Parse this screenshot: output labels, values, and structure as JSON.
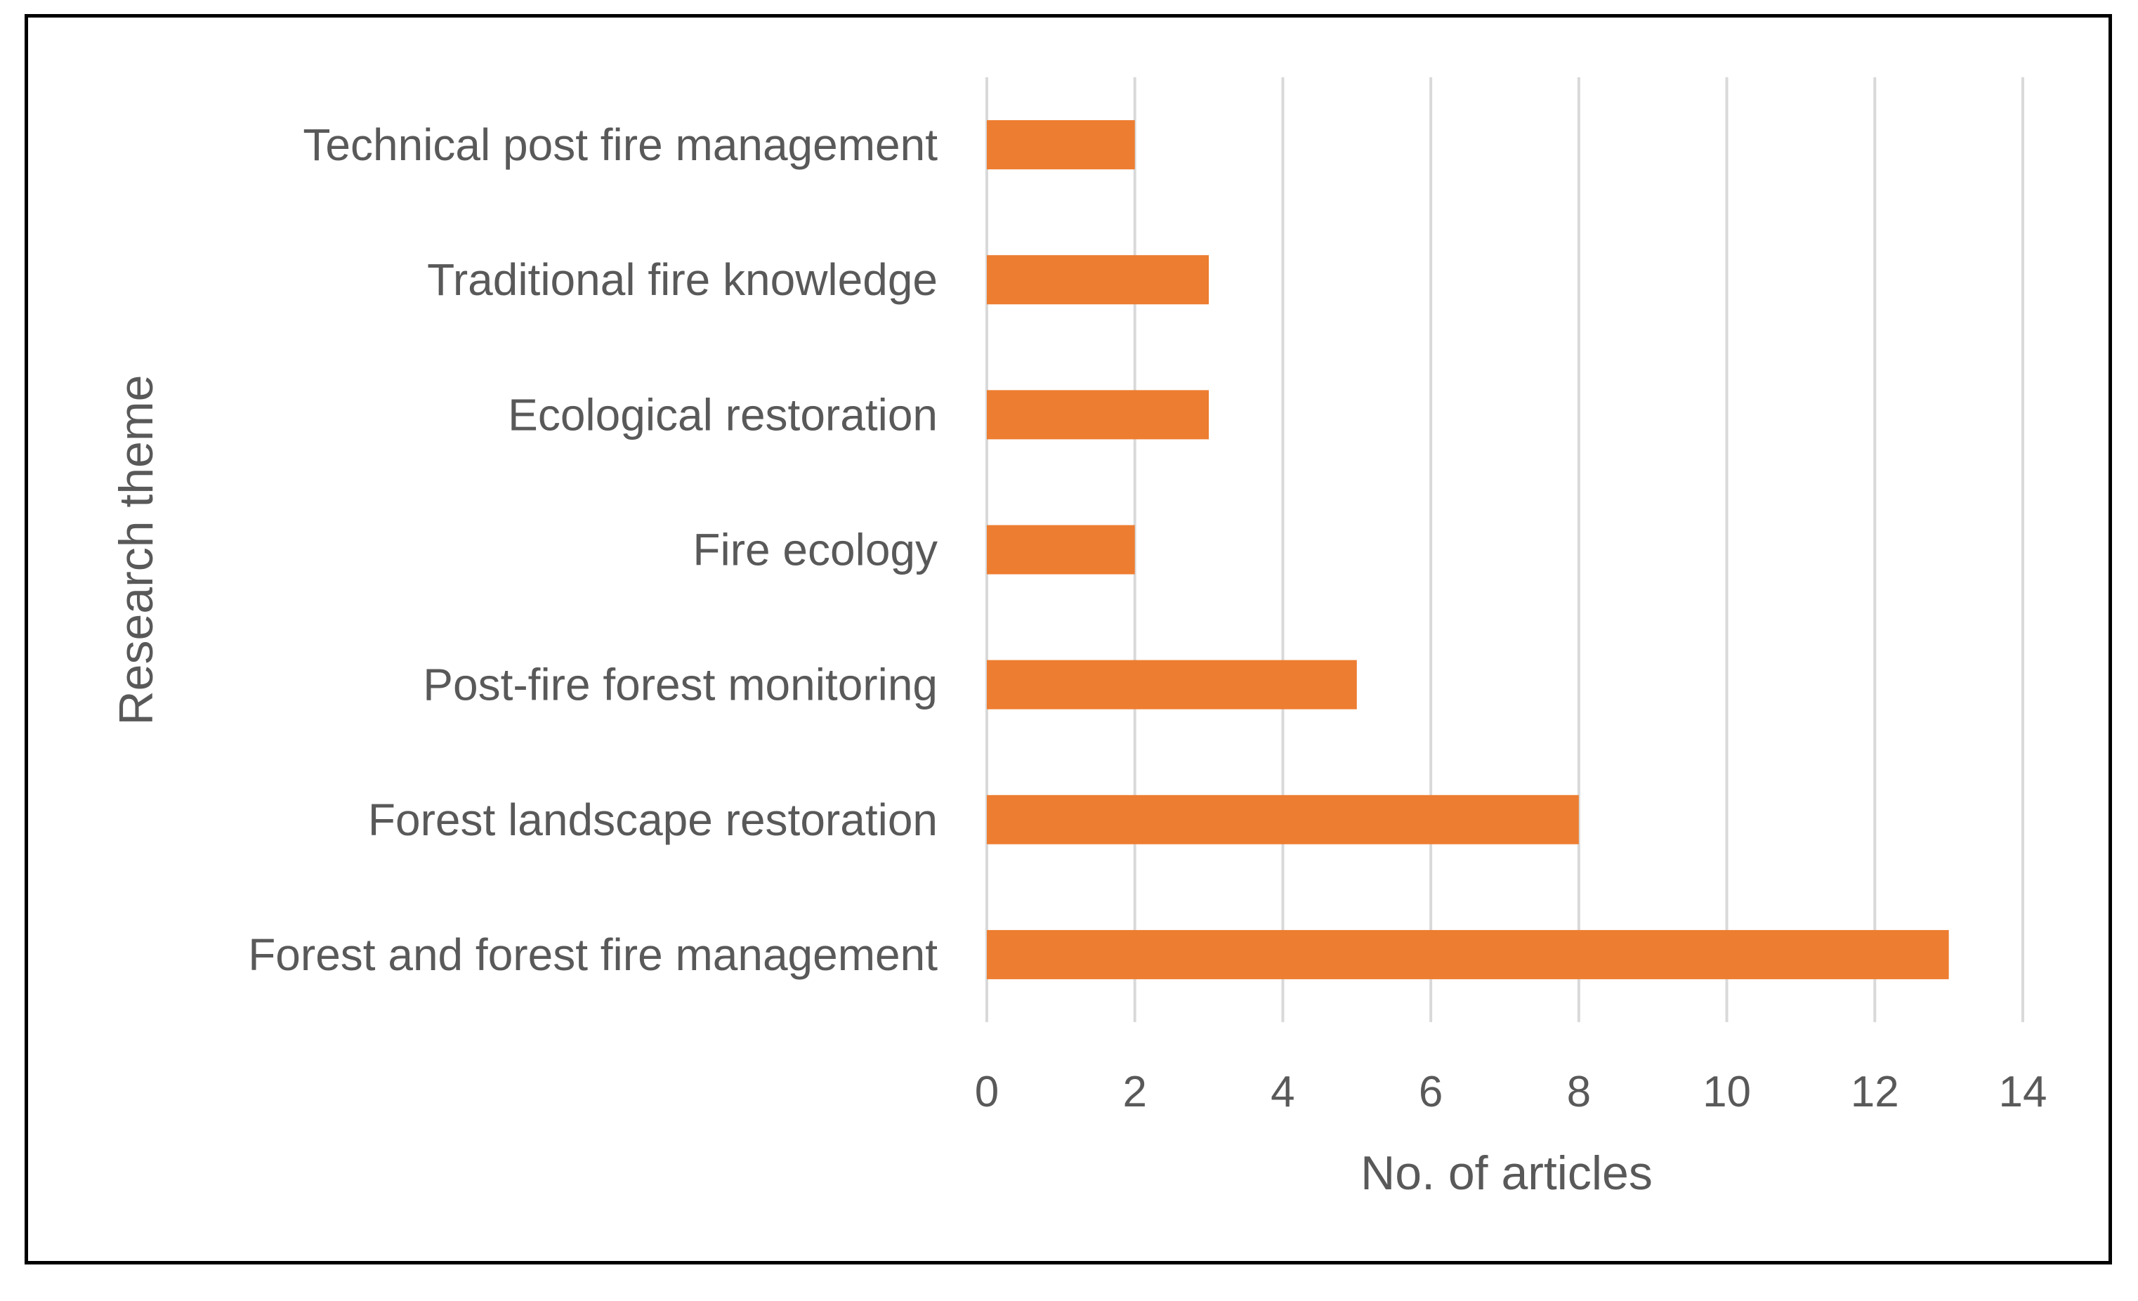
{
  "chart_data": {
    "type": "bar",
    "orientation": "horizontal",
    "categories": [
      "Technical post fire management",
      "Traditional fire knowledge",
      "Ecological restoration",
      "Fire ecology",
      "Post-fire forest monitoring",
      "Forest landscape restoration",
      "Forest and forest fire management"
    ],
    "values": [
      2,
      3,
      3,
      2,
      5,
      8,
      13
    ],
    "xlabel": "No. of articles",
    "ylabel": "Research theme",
    "xlim": [
      0,
      14
    ],
    "x_ticks": [
      "0",
      "2",
      "4",
      "6",
      "8",
      "10",
      "12",
      "14"
    ],
    "grid": "vertical",
    "legend": "none",
    "bar_color": "#ED7D31",
    "grid_color": "#D9D9D9",
    "text_color": "#595959"
  }
}
